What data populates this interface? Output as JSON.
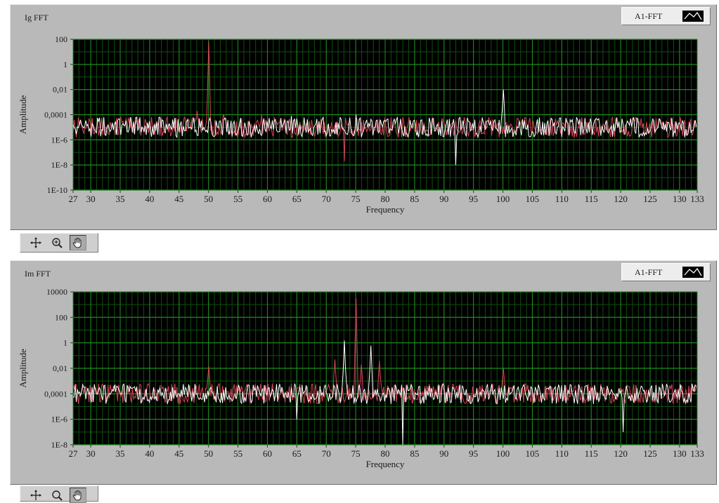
{
  "graphs": [
    {
      "title": "Ig FFT",
      "legend_label": "A1-FFT",
      "tools": [
        "cursor-move-icon",
        "zoom-icon",
        "pan-hand-icon"
      ]
    },
    {
      "title": "Im FFT",
      "legend_label": "A1-FFT",
      "tools": [
        "cursor-move-icon",
        "zoom-icon",
        "pan-hand-icon"
      ]
    }
  ],
  "colors": {
    "plot_bg": "#000000",
    "grid_major": "#1f8f1f",
    "grid_minor": "#0f4f0f",
    "series_red": "#d9435a",
    "series_white": "#ffffff"
  },
  "chart_data": [
    {
      "type": "line",
      "title": "Ig FFT",
      "xlabel": "Frequency",
      "ylabel": "Amplitude",
      "xlim": [
        27,
        133
      ],
      "ylim": [
        1e-10,
        100
      ],
      "yscale": "log",
      "grid": true,
      "xticks": [
        27,
        30,
        35,
        40,
        45,
        50,
        55,
        60,
        65,
        70,
        75,
        80,
        85,
        90,
        95,
        100,
        105,
        110,
        115,
        120,
        125,
        130,
        133
      ],
      "xtick_labels": [
        "27",
        "30",
        "35",
        "40",
        "45",
        "50",
        "55",
        "60",
        "65",
        "70",
        "75",
        "80",
        "85",
        "90",
        "95",
        "100",
        "105",
        "110",
        "115",
        "120",
        "125",
        "130",
        "133"
      ],
      "yticks": [
        1e-10,
        1e-08,
        1e-06,
        0.0001,
        0.01,
        1,
        100
      ],
      "ytick_labels": [
        "1E-10",
        "1E-8",
        "1E-6",
        "0,0001",
        "0,01",
        "1",
        "100"
      ],
      "noise_level": 1e-05,
      "series": [
        {
          "color": "red",
          "peaks": [
            [
              50,
              60
            ],
            [
              48,
              0.0002
            ],
            [
              52.5,
              0.0001
            ],
            [
              73,
              2e-08
            ],
            [
              59,
              0.0001
            ]
          ]
        },
        {
          "color": "white",
          "peaks": [
            [
              100,
              0.01
            ],
            [
              92,
              1e-08
            ],
            [
              75,
              0.0001
            ],
            [
              64,
              8e-05
            ]
          ]
        }
      ]
    },
    {
      "type": "line",
      "title": "Im FFT",
      "xlabel": "Frequency",
      "ylabel": "Amplitude",
      "xlim": [
        27,
        133
      ],
      "ylim": [
        1e-08,
        10000
      ],
      "yscale": "log",
      "grid": true,
      "xticks": [
        27,
        30,
        35,
        40,
        45,
        50,
        55,
        60,
        65,
        70,
        75,
        80,
        85,
        90,
        95,
        100,
        105,
        110,
        115,
        120,
        125,
        130,
        133
      ],
      "xtick_labels": [
        "27",
        "30",
        "35",
        "40",
        "45",
        "50",
        "55",
        "60",
        "65",
        "70",
        "75",
        "80",
        "85",
        "90",
        "95",
        "100",
        "105",
        "110",
        "115",
        "120",
        "125",
        "130",
        "133"
      ],
      "yticks": [
        1e-08,
        1e-06,
        0.0001,
        0.01,
        1,
        100,
        10000
      ],
      "ytick_labels": [
        "1E-8",
        "1E-6",
        "0,0001",
        "0,01",
        "1",
        "100",
        "10000"
      ],
      "noise_level": 0.0001,
      "series": [
        {
          "color": "red",
          "peaks": [
            [
              75,
              3000
            ],
            [
              71.5,
              0.05
            ],
            [
              79,
              0.04
            ],
            [
              50,
              0.015
            ],
            [
              100,
              0.01
            ],
            [
              76,
              0.02
            ]
          ]
        },
        {
          "color": "white",
          "peaks": [
            [
              73,
              1.5
            ],
            [
              77.5,
              0.6
            ],
            [
              83,
              1e-08
            ],
            [
              65,
              1e-06
            ],
            [
              120.5,
              1e-07
            ]
          ]
        }
      ]
    }
  ]
}
